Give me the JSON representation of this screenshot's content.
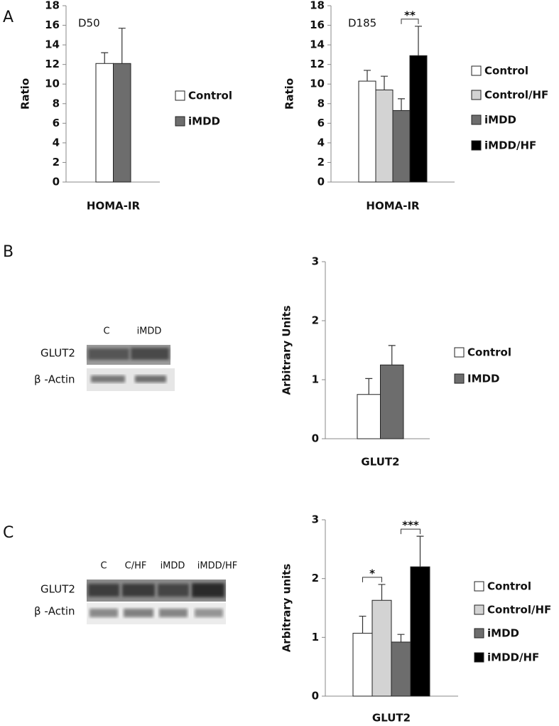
{
  "panels": [
    "A",
    "B",
    "C"
  ],
  "blots": [
    {
      "lanes": [
        "C",
        "iMDD"
      ],
      "rows": [
        "GLUT2",
        "β -Actin"
      ]
    },
    {
      "lanes": [
        "C",
        "C/HF",
        "iMDD",
        "iMDD/HF"
      ],
      "rows": [
        "GLUT2",
        "β -Actin"
      ]
    }
  ],
  "chart_data": [
    {
      "type": "bar",
      "annotation": "D50",
      "ylabel": "Ratio",
      "categories": [
        "HOMA-IR"
      ],
      "ylim": [
        0,
        18
      ],
      "yticks": [
        0,
        2,
        4,
        6,
        8,
        10,
        12,
        14,
        16,
        18
      ],
      "series": [
        {
          "name": "Control",
          "color": "#ffffff",
          "values": [
            12.1
          ],
          "errors": [
            1.1
          ]
        },
        {
          "name": "iMDD",
          "color": "#6d6d6d",
          "values": [
            12.1
          ],
          "errors": [
            3.6
          ]
        }
      ]
    },
    {
      "type": "bar",
      "annotation": "D185",
      "ylabel": "Ratio",
      "categories": [
        "HOMA-IR"
      ],
      "ylim": [
        0,
        18
      ],
      "yticks": [
        0,
        2,
        4,
        6,
        8,
        10,
        12,
        14,
        16,
        18
      ],
      "series": [
        {
          "name": "Control",
          "color": "#ffffff",
          "values": [
            10.3
          ],
          "errors": [
            1.1
          ]
        },
        {
          "name": "Control/HF",
          "color": "#d3d3d3",
          "values": [
            9.4
          ],
          "errors": [
            1.4
          ]
        },
        {
          "name": "iMDD",
          "color": "#6d6d6d",
          "values": [
            7.3
          ],
          "errors": [
            1.2
          ]
        },
        {
          "name": "iMDD/HF",
          "color": "#000000",
          "values": [
            12.9
          ],
          "errors": [
            3.0
          ]
        }
      ],
      "significance": [
        {
          "from": 2,
          "to": 3,
          "label": "**"
        }
      ]
    },
    {
      "type": "bar",
      "ylabel": "Arbitrary Units",
      "categories": [
        "GLUT2"
      ],
      "ylim": [
        0,
        3
      ],
      "yticks": [
        0,
        1,
        2,
        3
      ],
      "series": [
        {
          "name": "Control",
          "color": "#ffffff",
          "values": [
            0.75
          ],
          "errors": [
            0.27
          ]
        },
        {
          "name": "IMDD",
          "color": "#6d6d6d",
          "values": [
            1.25
          ],
          "errors": [
            0.33
          ]
        }
      ]
    },
    {
      "type": "bar",
      "ylabel": "Arbitrary units",
      "categories": [
        "GLUT2"
      ],
      "ylim": [
        0,
        3
      ],
      "yticks": [
        0,
        1,
        2,
        3
      ],
      "series": [
        {
          "name": "Control",
          "color": "#ffffff",
          "values": [
            1.07
          ],
          "errors": [
            0.29
          ]
        },
        {
          "name": "Control/HF",
          "color": "#d3d3d3",
          "values": [
            1.63
          ],
          "errors": [
            0.27
          ]
        },
        {
          "name": "iMDD",
          "color": "#6d6d6d",
          "values": [
            0.92
          ],
          "errors": [
            0.13
          ]
        },
        {
          "name": "iMDD/HF",
          "color": "#000000",
          "values": [
            2.2
          ],
          "errors": [
            0.52
          ]
        }
      ],
      "significance": [
        {
          "from": 0,
          "to": 1,
          "label": "*"
        },
        {
          "from": 2,
          "to": 3,
          "label": "***"
        }
      ]
    }
  ]
}
